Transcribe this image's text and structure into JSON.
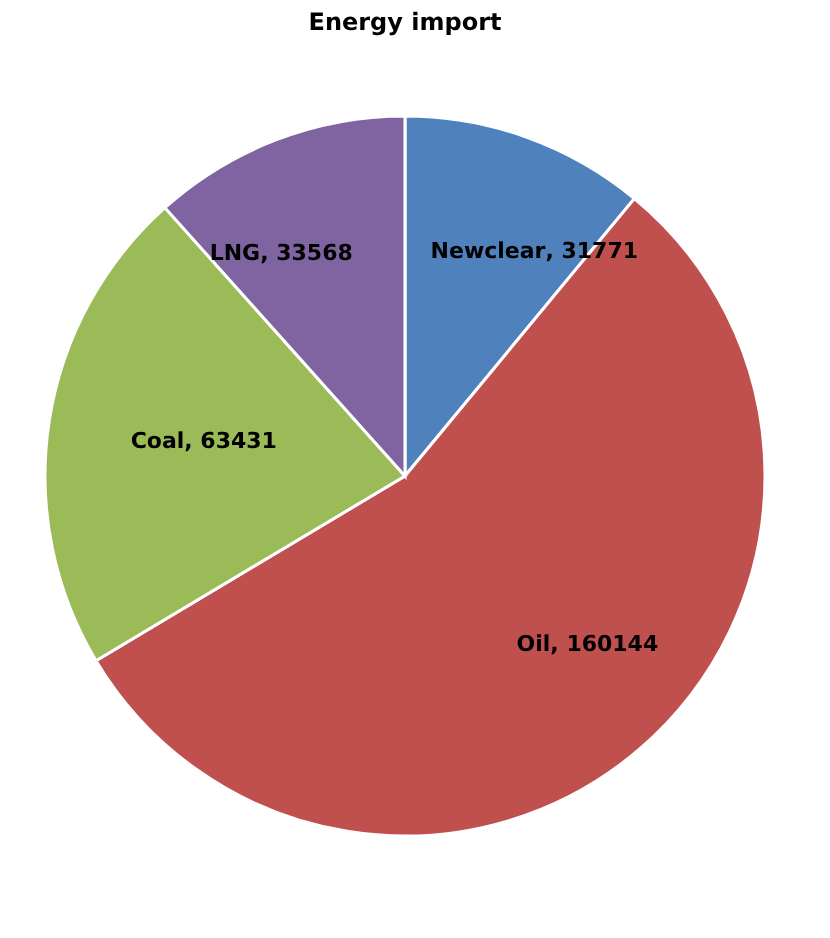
{
  "chart_data": {
    "type": "pie",
    "title": "Energy import",
    "categories": [
      "Newclear",
      "Oil",
      "Coal",
      "LNG"
    ],
    "values": [
      31771,
      160144,
      63431,
      33568
    ],
    "value_labels": [
      ", 31771",
      ", 160144",
      ", 63431",
      ", 33568"
    ],
    "colors": [
      "#4f81bd",
      "#c0504d",
      "#9bbb59",
      "#8064a2"
    ],
    "legend": false
  }
}
